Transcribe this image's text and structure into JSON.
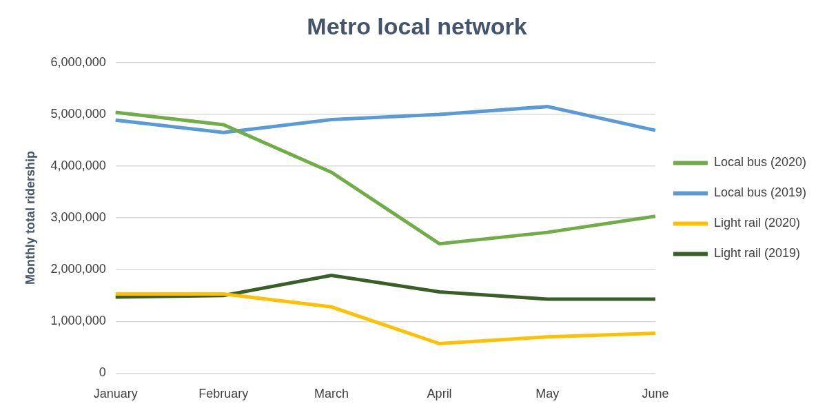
{
  "chart_data": {
    "type": "line",
    "title": "Metro local network",
    "y_label": "Monthly total ridership",
    "categories": [
      "January",
      "February",
      "March",
      "April",
      "May",
      "June"
    ],
    "series": [
      {
        "name": "Local bus (2020)",
        "color": "#70ad47",
        "values": [
          5040000,
          4800000,
          3880000,
          2500000,
          2720000,
          3030000
        ]
      },
      {
        "name": "Local bus (2019)",
        "color": "#5b9bd5",
        "values": [
          4890000,
          4650000,
          4900000,
          5000000,
          5150000,
          4690000
        ]
      },
      {
        "name": "Light rail (2020)",
        "color": "#ffc000",
        "values": [
          1530000,
          1530000,
          1280000,
          570000,
          700000,
          770000
        ]
      },
      {
        "name": "Light rail (2019)",
        "color": "#3a5f26",
        "values": [
          1470000,
          1500000,
          1890000,
          1570000,
          1430000,
          1430000
        ]
      }
    ],
    "ylim": [
      0,
      6000000
    ],
    "yticks": [
      0,
      {
        "value": 1000000,
        "label": "1,000,000"
      },
      {
        "value": 2000000,
        "label": "2,000,000"
      },
      {
        "value": 3000000,
        "label": "3,000,000"
      },
      {
        "value": 4000000,
        "label": "4,000,000"
      },
      {
        "value": 5000000,
        "label": "5,000,000"
      },
      {
        "value": 6000000,
        "label": "6,000,000"
      }
    ],
    "grid": true,
    "legend": "right"
  }
}
